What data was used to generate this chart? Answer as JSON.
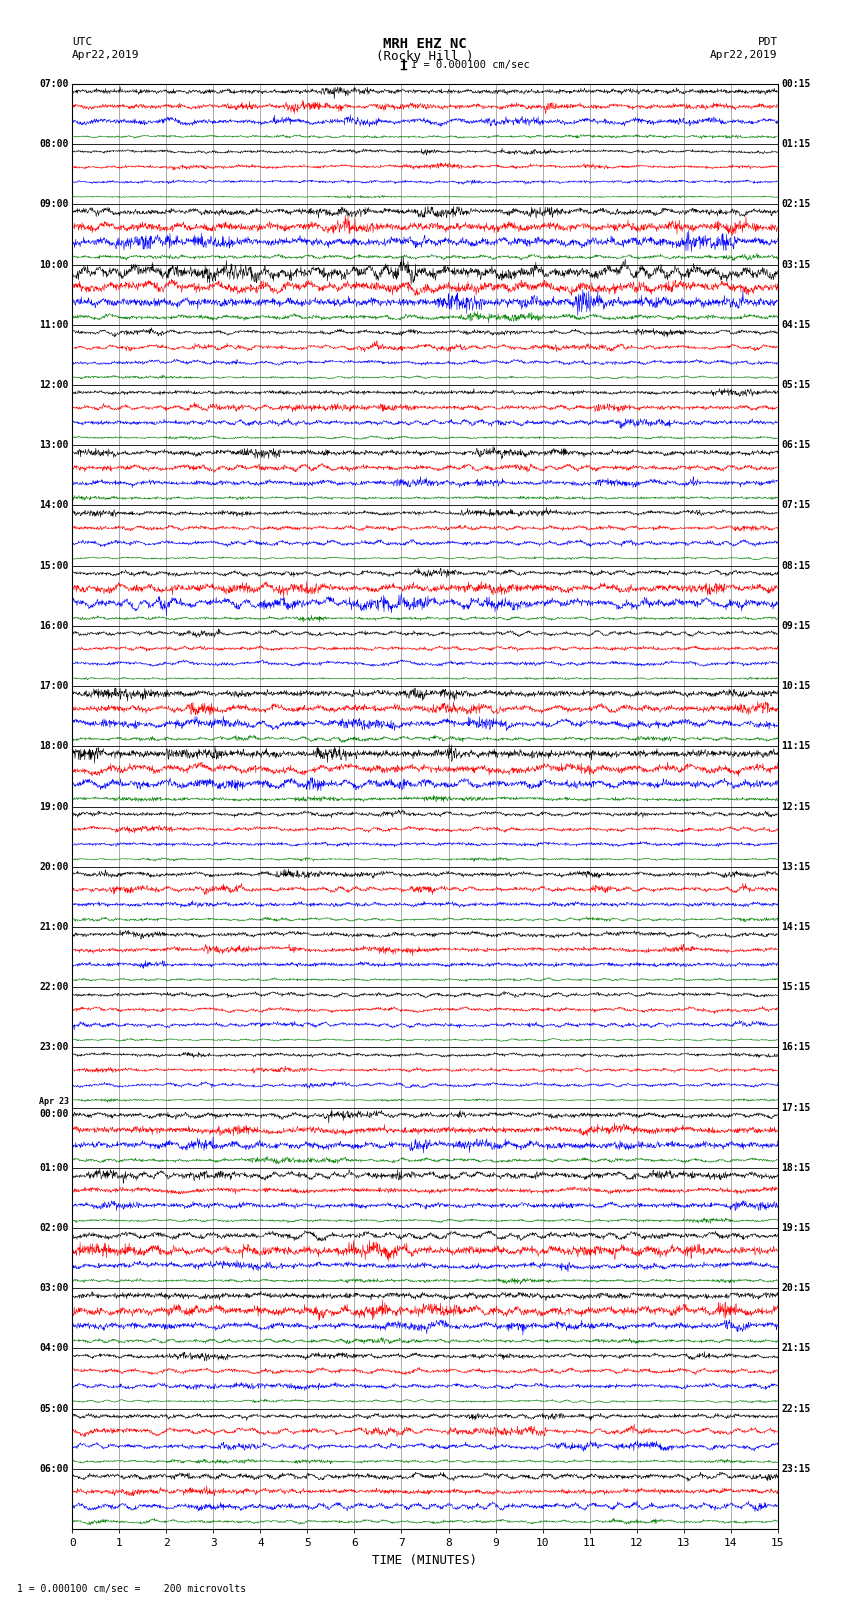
{
  "title_line1": "MRH EHZ NC",
  "title_line2": "(Rocky Hill )",
  "scale_label": "I = 0.000100 cm/sec",
  "footer_label": "1 = 0.000100 cm/sec =    200 microvolts",
  "left_header": "UTC",
  "left_date": "Apr22,2019",
  "right_header": "PDT",
  "right_date": "Apr22,2019",
  "xlabel": "TIME (MINUTES)",
  "xmin": 0,
  "xmax": 15,
  "xticks": [
    0,
    1,
    2,
    3,
    4,
    5,
    6,
    7,
    8,
    9,
    10,
    11,
    12,
    13,
    14,
    15
  ],
  "background_color": "#ffffff",
  "trace_colors": [
    "black",
    "red",
    "blue",
    "green"
  ],
  "n_hours": 24,
  "traces_per_hour": 4,
  "noise_seed": 42,
  "utc_hour_labels": [
    "07:00",
    "08:00",
    "09:00",
    "10:00",
    "11:00",
    "12:00",
    "13:00",
    "14:00",
    "15:00",
    "16:00",
    "17:00",
    "18:00",
    "19:00",
    "20:00",
    "21:00",
    "22:00",
    "23:00",
    "00:00",
    "01:00",
    "02:00",
    "03:00",
    "04:00",
    "05:00",
    "06:00"
  ],
  "pdt_hour_labels": [
    "00:15",
    "01:15",
    "02:15",
    "03:15",
    "04:15",
    "05:15",
    "06:15",
    "07:15",
    "08:15",
    "09:15",
    "10:15",
    "11:15",
    "12:15",
    "13:15",
    "14:15",
    "15:15",
    "16:15",
    "17:15",
    "18:15",
    "19:15",
    "20:15",
    "21:15",
    "22:15",
    "23:15"
  ],
  "apr23_hour_index": 17,
  "noise_levels": [
    0.35,
    0.35,
    0.35,
    0.15,
    0.2,
    0.2,
    0.2,
    0.1,
    0.4,
    0.6,
    0.6,
    0.25,
    0.8,
    0.7,
    0.65,
    0.3,
    0.25,
    0.25,
    0.25,
    0.12,
    0.3,
    0.3,
    0.3,
    0.15,
    0.35,
    0.35,
    0.35,
    0.18,
    0.28,
    0.28,
    0.28,
    0.12,
    0.28,
    0.55,
    0.55,
    0.2,
    0.25,
    0.25,
    0.25,
    0.12,
    0.45,
    0.45,
    0.45,
    0.22,
    0.6,
    0.55,
    0.55,
    0.25,
    0.25,
    0.25,
    0.25,
    0.12,
    0.3,
    0.3,
    0.3,
    0.15,
    0.3,
    0.3,
    0.3,
    0.15,
    0.25,
    0.25,
    0.25,
    0.12,
    0.22,
    0.22,
    0.22,
    0.1,
    0.35,
    0.5,
    0.5,
    0.22,
    0.4,
    0.35,
    0.35,
    0.15,
    0.38,
    0.65,
    0.38,
    0.18,
    0.42,
    0.6,
    0.42,
    0.22,
    0.28,
    0.28,
    0.28,
    0.12,
    0.3,
    0.3,
    0.3,
    0.15,
    0.35,
    0.35,
    0.35,
    0.18
  ]
}
